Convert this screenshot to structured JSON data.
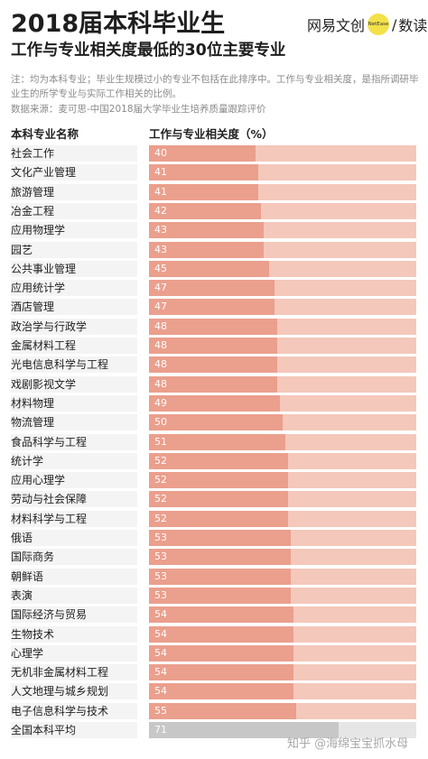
{
  "header": {
    "title": "2018届本科毕业生",
    "subtitle": "工作与专业相关度最低的30位主要专业",
    "brand_name": "网易文创",
    "brand_badge": "NetEase",
    "brand_sub": "数读"
  },
  "notes": {
    "note": "注：均为本科专业；毕业生规模过小的专业不包括在此排序中。工作与专业相关度，是指所调研毕业生的所学专业与实际工作相关的比例。",
    "source": "数据来源：麦可思-中国2018届大学毕业生培养质量跟踪评价"
  },
  "watermark": "知乎 @海绵宝宝抓水母",
  "colors": {
    "bar": "#eb9f8d",
    "track": "#f4c8bb",
    "average_bar": "#c7c7c7",
    "average_track": "#e6e6e6",
    "label_bg": "#f4f4f4"
  },
  "chart_data": {
    "type": "bar",
    "orientation": "horizontal",
    "category_header": "本科专业名称",
    "value_header": "工作与专业相关度（%）",
    "xlim": [
      0,
      100
    ],
    "categories": [
      "社会工作",
      "文化产业管理",
      "旅游管理",
      "冶金工程",
      "应用物理学",
      "园艺",
      "公共事业管理",
      "应用统计学",
      "酒店管理",
      "政治学与行政学",
      "金属材料工程",
      "光电信息科学与工程",
      "戏剧影视文学",
      "材料物理",
      "物流管理",
      "食品科学与工程",
      "统计学",
      "应用心理学",
      "劳动与社会保障",
      "材料科学与工程",
      "俄语",
      "国际商务",
      "朝鲜语",
      "表演",
      "国际经济与贸易",
      "生物技术",
      "心理学",
      "无机非金属材料工程",
      "人文地理与城乡规划",
      "电子信息科学与技术",
      "全国本科平均"
    ],
    "values": [
      40,
      41,
      41,
      42,
      43,
      43,
      45,
      47,
      47,
      48,
      48,
      48,
      48,
      49,
      50,
      51,
      52,
      52,
      52,
      52,
      53,
      53,
      53,
      53,
      54,
      54,
      54,
      54,
      54,
      55,
      71
    ],
    "highlight": "全国本科平均"
  }
}
